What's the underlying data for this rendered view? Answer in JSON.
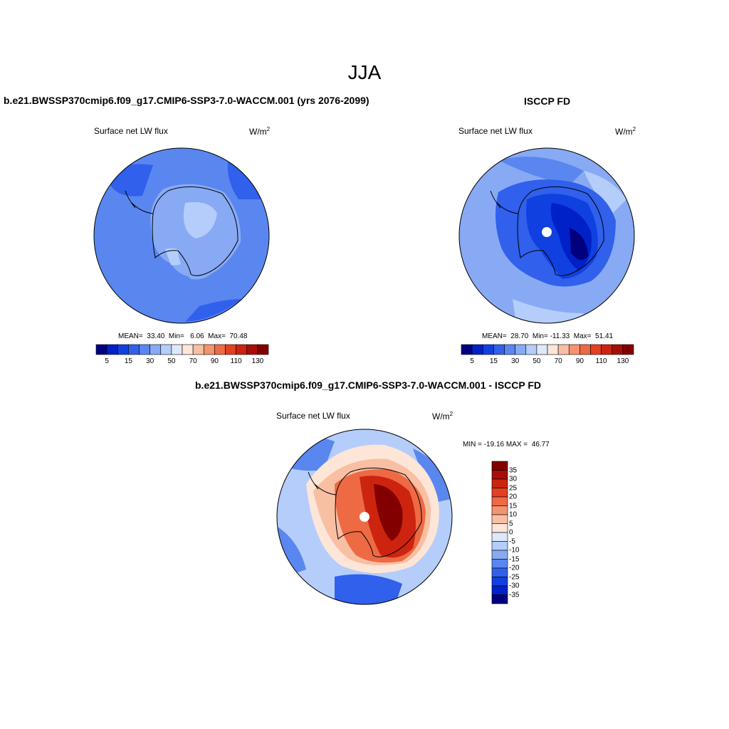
{
  "season": "JJA",
  "palette": [
    "#00007f",
    "#0020c8",
    "#1040e0",
    "#3060ec",
    "#5a86f0",
    "#88aaf4",
    "#b4cdfa",
    "#dde9fb",
    "#fde5d8",
    "#f9bfa3",
    "#f4936f",
    "#ee6a45",
    "#e44022",
    "#cc240f",
    "#a80d07",
    "#830000"
  ],
  "panel_left": {
    "title": "b.e21.BWSSP370cmip6.f09_g17.CMIP6-SSP3-7.0-WACCM.001 (yrs 2076-2099)",
    "variable": "Surface net LW flux",
    "units_base": "W/m",
    "units_sup": "2",
    "stats": "MEAN=  33.40  Min=   6.06  Max=  70.48",
    "colorbar_ticks": [
      "5",
      "15",
      "30",
      "50",
      "70",
      "90",
      "110",
      "130"
    ]
  },
  "panel_right": {
    "title": "ISCCP FD",
    "variable": "Surface net LW flux",
    "units_base": "W/m",
    "units_sup": "2",
    "stats": "MEAN=  28.70  Min= -11.33  Max=  51.41",
    "colorbar_ticks": [
      "5",
      "15",
      "30",
      "50",
      "70",
      "90",
      "110",
      "130"
    ]
  },
  "panel_diff": {
    "title": "b.e21.BWSSP370cmip6.f09_g17.CMIP6-SSP3-7.0-WACCM.001 - ISCCP FD",
    "variable": "Surface net LW flux",
    "units_base": "W/m",
    "units_sup": "2",
    "stats": "MIN = -19.16 MAX =  46.77",
    "colorbar_ticks": [
      "35",
      "30",
      "25",
      "20",
      "15",
      "10",
      "5",
      "0",
      "-5",
      "-10",
      "-15",
      "-20",
      "-25",
      "-30",
      "-35"
    ]
  }
}
